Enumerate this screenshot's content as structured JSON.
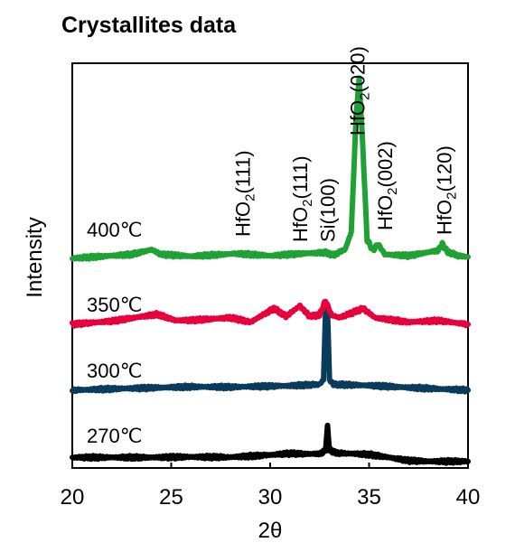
{
  "chart_data": {
    "type": "line",
    "title": "Crystallites data",
    "xlabel": "2θ",
    "ylabel": "Intensity",
    "xlim": [
      20,
      40
    ],
    "xticks": [
      20,
      25,
      30,
      35,
      40
    ],
    "yticks": [],
    "grid": false,
    "series": [
      {
        "name": "270℃",
        "color": "#000000",
        "baseline": 0.0,
        "points": [
          [
            20,
            0.15
          ],
          [
            24,
            0.15
          ],
          [
            26,
            0.17
          ],
          [
            28,
            0.16
          ],
          [
            29.5,
            0.22
          ],
          [
            31,
            0.3
          ],
          [
            32,
            0.28
          ],
          [
            32.6,
            0.3
          ],
          [
            32.8,
            0.45
          ],
          [
            32.9,
            1.3
          ],
          [
            33.0,
            0.45
          ],
          [
            33.3,
            0.32
          ],
          [
            34,
            0.3
          ],
          [
            35,
            0.26
          ],
          [
            36,
            0.15
          ],
          [
            37,
            0.03
          ],
          [
            38,
            0.0
          ],
          [
            40,
            0.0
          ]
        ]
      },
      {
        "name": "300℃",
        "color": "#0b3b5c",
        "baseline": 2.7,
        "points": [
          [
            20,
            0.0
          ],
          [
            22,
            0.05
          ],
          [
            26,
            0.13
          ],
          [
            28,
            0.12
          ],
          [
            31,
            0.17
          ],
          [
            32.5,
            0.22
          ],
          [
            32.7,
            0.4
          ],
          [
            32.8,
            3.0
          ],
          [
            32.9,
            3.0
          ],
          [
            33.0,
            0.4
          ],
          [
            33.2,
            0.22
          ],
          [
            35,
            0.18
          ],
          [
            37,
            0.1
          ],
          [
            40,
            0.0
          ]
        ]
      },
      {
        "name": "350℃",
        "color": "#e8003c",
        "baseline": 5.2,
        "points": [
          [
            20,
            0.0
          ],
          [
            22,
            0.12
          ],
          [
            24.3,
            0.38
          ],
          [
            25.2,
            0.15
          ],
          [
            26,
            0.15
          ],
          [
            28,
            0.25
          ],
          [
            29,
            0.08
          ],
          [
            30.2,
            0.6
          ],
          [
            30.8,
            0.3
          ],
          [
            31.5,
            0.7
          ],
          [
            32,
            0.3
          ],
          [
            32.5,
            0.35
          ],
          [
            32.8,
            0.9
          ],
          [
            33.1,
            0.35
          ],
          [
            33.5,
            0.25
          ],
          [
            34.7,
            0.6
          ],
          [
            35.3,
            0.25
          ],
          [
            37,
            0.08
          ],
          [
            38.5,
            0.14
          ],
          [
            40,
            0.0
          ]
        ]
      },
      {
        "name": "400℃",
        "color": "#1fa136",
        "baseline": 7.7,
        "points": [
          [
            20,
            0.0
          ],
          [
            23,
            0.15
          ],
          [
            24.0,
            0.33
          ],
          [
            24.5,
            0.15
          ],
          [
            26,
            0.08
          ],
          [
            28.3,
            0.18
          ],
          [
            30,
            0.1
          ],
          [
            31.6,
            0.18
          ],
          [
            32.8,
            0.22
          ],
          [
            33.2,
            0.12
          ],
          [
            33.8,
            0.35
          ],
          [
            34.1,
            1.0
          ],
          [
            34.35,
            5.5
          ],
          [
            34.5,
            6.8
          ],
          [
            34.7,
            4.0
          ],
          [
            34.9,
            0.7
          ],
          [
            35.2,
            0.3
          ],
          [
            35.45,
            0.55
          ],
          [
            35.8,
            0.15
          ],
          [
            37,
            0.1
          ],
          [
            38.5,
            0.3
          ],
          [
            38.7,
            0.55
          ],
          [
            38.95,
            0.25
          ],
          [
            39.5,
            0.1
          ],
          [
            40,
            0.05
          ]
        ]
      }
    ],
    "annotations": [
      {
        "text": "HfO2(111)",
        "x": 28.6
      },
      {
        "text": "HfO2(111)",
        "x": 31.5
      },
      {
        "text": "Si(100)",
        "x": 32.9
      },
      {
        "text": "HfO2(020)",
        "x": 34.4
      },
      {
        "text": "HfO2(002)",
        "x": 35.8
      },
      {
        "text": "HfO2(120)",
        "x": 38.8
      }
    ]
  }
}
